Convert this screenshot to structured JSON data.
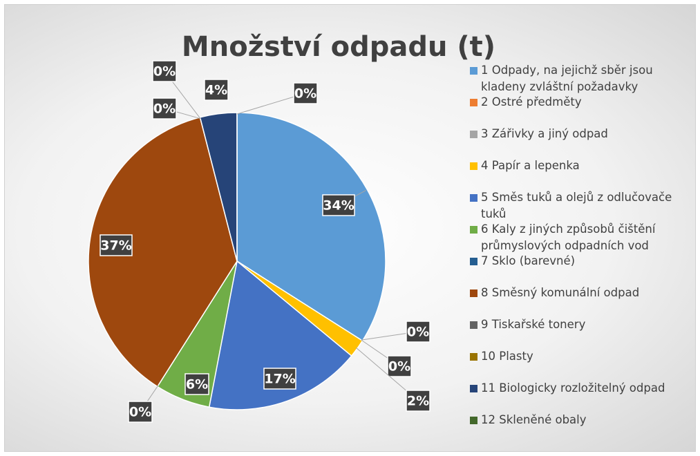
{
  "chart_data": {
    "type": "pie",
    "title": "Množství odpadu (t)",
    "categories": [
      "1 Odpady, na jejichž sběr jsou kladeny zvláštní požadavky",
      "2 Ostré předměty",
      "3 Zářivky a jiný odpad",
      "4 Papír a lepenka",
      "5 Směs tuků a olejů z odlučovače tuků",
      "6 Kaly z jiných způsobů čištění průmyslových odpadních vod",
      "7 Sklo (barevné)",
      "8 Směsný komunální odpad",
      "9 Tiskařské tonery",
      "10 Plasty",
      "11 Biologicky rozložitelný odpad",
      "12 Skleněné obaly"
    ],
    "values": [
      34,
      0,
      0,
      2,
      17,
      6,
      0,
      37,
      0,
      0,
      4,
      0
    ],
    "value_labels": [
      "34%",
      "0%",
      "0%",
      "2%",
      "17%",
      "6%",
      "0%",
      "37%",
      "0%",
      "0%",
      "4%",
      "0%"
    ],
    "colors": [
      "#5b9bd5",
      "#ed7d31",
      "#a5a5a5",
      "#ffc000",
      "#4472c4",
      "#70ad47",
      "#255e91",
      "#9e480e",
      "#636363",
      "#997300",
      "#264478",
      "#43682b"
    ],
    "legend": "right"
  }
}
